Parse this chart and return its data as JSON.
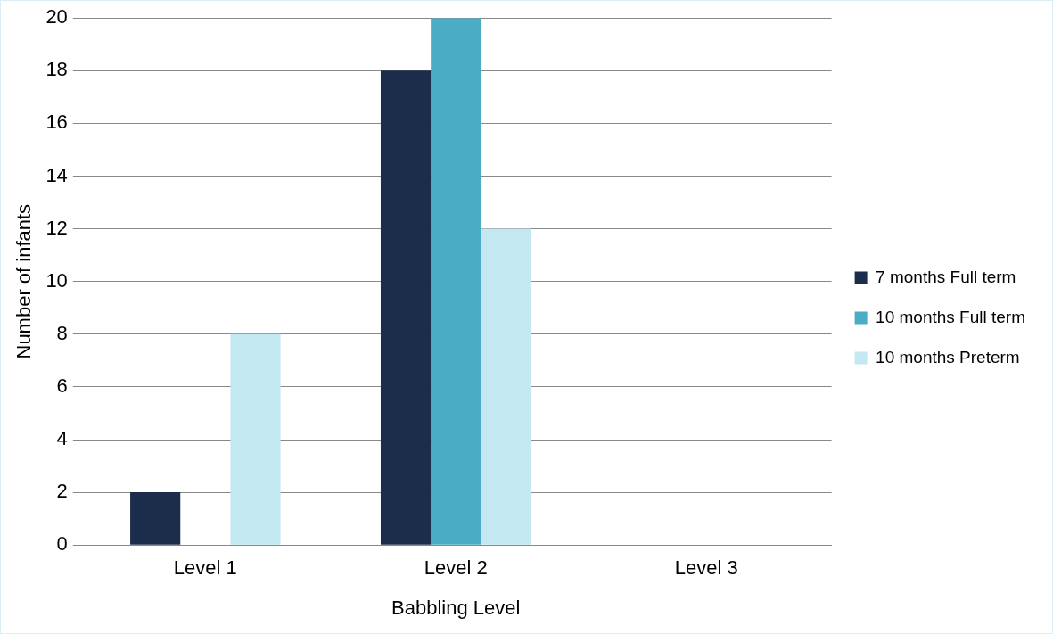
{
  "chart_data": {
    "type": "bar",
    "xlabel": "Babbling Level",
    "ylabel": "Number of infants",
    "categories": [
      "Level 1",
      "Level 2",
      "Level 3"
    ],
    "series": [
      {
        "name": "7 months Full term",
        "color": "#1b2d4b",
        "values": [
          2,
          18,
          0
        ]
      },
      {
        "name": "10 months Full term",
        "color": "#4bacc6",
        "values": [
          0,
          20,
          0
        ]
      },
      {
        "name": "10 months Preterm",
        "color": "#c3e8f2",
        "values": [
          8,
          12,
          0
        ]
      }
    ],
    "ylim": [
      0,
      20
    ],
    "yticks": [
      0,
      2,
      4,
      6,
      8,
      10,
      12,
      14,
      16,
      18,
      20
    ],
    "grid": "y",
    "legend": "right"
  }
}
